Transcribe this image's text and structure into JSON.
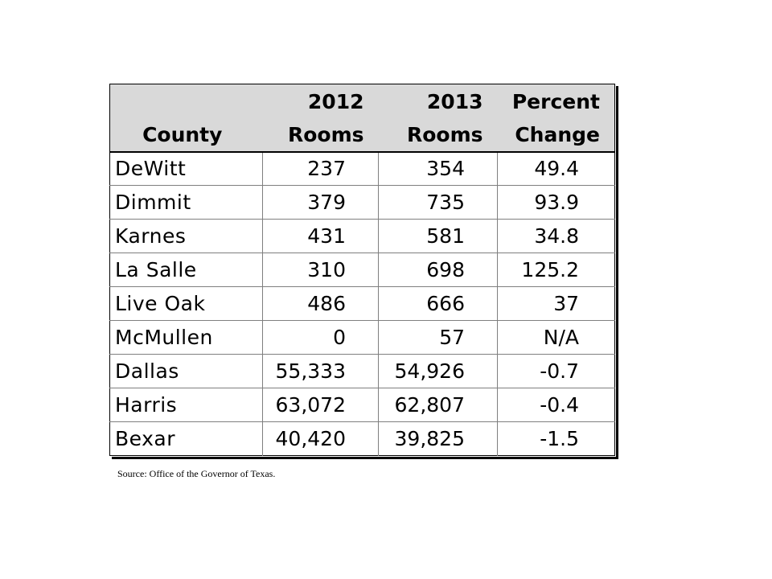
{
  "table": {
    "headers": [
      {
        "line1": "",
        "line2": "County"
      },
      {
        "line1": "2012",
        "line2": "Rooms"
      },
      {
        "line1": "2013",
        "line2": "Rooms"
      },
      {
        "line1": "Percent",
        "line2": "Change"
      }
    ],
    "rows": [
      {
        "county": "DeWitt",
        "rooms_2012": "237",
        "rooms_2013": "354",
        "pct_change": "49.4"
      },
      {
        "county": "Dimmit",
        "rooms_2012": "379",
        "rooms_2013": "735",
        "pct_change": "93.9"
      },
      {
        "county": "Karnes",
        "rooms_2012": "431",
        "rooms_2013": "581",
        "pct_change": "34.8"
      },
      {
        "county": "La Salle",
        "rooms_2012": "310",
        "rooms_2013": "698",
        "pct_change": "125.2"
      },
      {
        "county": "Live Oak",
        "rooms_2012": "486",
        "rooms_2013": "666",
        "pct_change": "37"
      },
      {
        "county": "McMullen",
        "rooms_2012": "0",
        "rooms_2013": "57",
        "pct_change": "N/A"
      },
      {
        "county": "Dallas",
        "rooms_2012": "55,333",
        "rooms_2013": "54,926",
        "pct_change": "-0.7"
      },
      {
        "county": "Harris",
        "rooms_2012": "63,072",
        "rooms_2013": "62,807",
        "pct_change": "-0.4"
      },
      {
        "county": "Bexar",
        "rooms_2012": "40,420",
        "rooms_2013": "39,825",
        "pct_change": "-1.5"
      }
    ],
    "header_bg": "#d9d9d9"
  },
  "source": "Source: Office of the Governor of Texas."
}
